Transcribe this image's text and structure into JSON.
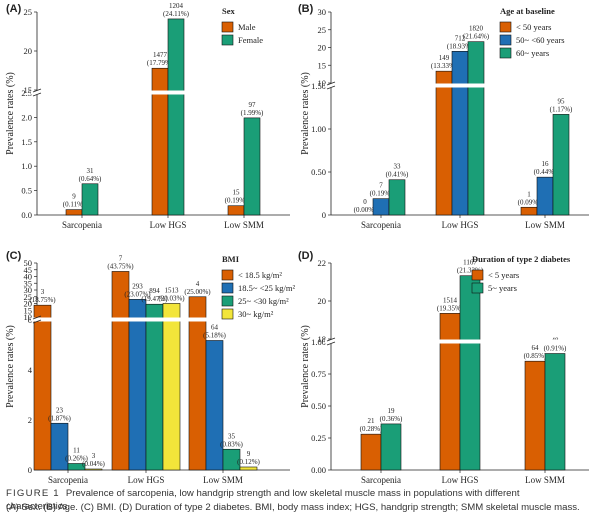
{
  "caption": {
    "label": "FIGURE 1",
    "line1": "Prevalence of sarcopenia, low handgrip strength and low skeletal muscle mass in populations with different characteristics.",
    "line2": "(A) Sex. (B) Age. (C) BMI. (D) Duration of type 2 diabetes. BMI, body mass index; HGS, handgrip strength; SMM skeletal muscle mass."
  },
  "colors": {
    "orange": "#d95f02",
    "blue": "#1f6fb4",
    "green": "#1a9e77",
    "yellow": "#f2e53a"
  },
  "chart_data": [
    {
      "panel": "(A)",
      "type": "bar",
      "ylabel": "Prevalence rates (%)",
      "legend_title": "Sex",
      "legend_position": "top-right",
      "categories": [
        "Sarcopenia",
        "Low HGS",
        "Low SMM"
      ],
      "axis_break": true,
      "y_segments": [
        {
          "range": [
            0,
            2.5
          ],
          "ticks": [
            "0.0",
            "0.5",
            "1.0",
            "1.5",
            "2.0",
            "2.5"
          ]
        },
        {
          "range": [
            15,
            25
          ],
          "ticks": [
            "15",
            "20",
            "25"
          ]
        }
      ],
      "series": [
        {
          "name": "Male",
          "color": "#d95f02",
          "values": [
            0.11,
            17.79,
            0.19
          ],
          "labels": [
            [
              "9",
              "(0.11%)"
            ],
            [
              "1477",
              "(17.79%)"
            ],
            [
              "15",
              "(0.19%)"
            ]
          ]
        },
        {
          "name": "Female",
          "color": "#1a9e77",
          "values": [
            0.64,
            24.11,
            1.99
          ],
          "labels": [
            [
              "31",
              "(0.64%)"
            ],
            [
              "1204",
              "(24.11%)"
            ],
            [
              "97",
              "(1.99%)"
            ]
          ]
        }
      ]
    },
    {
      "panel": "(B)",
      "type": "bar",
      "ylabel": "Prevalence rates (%)",
      "legend_title": "Age at baseline",
      "legend_position": "top-right",
      "categories": [
        "Sarcopenia",
        "Low HGS",
        "Low SMM"
      ],
      "axis_break": true,
      "y_segments": [
        {
          "range": [
            0,
            1.5
          ],
          "ticks": [
            "0",
            "0.50",
            "1.00",
            "1.50"
          ]
        },
        {
          "range": [
            10,
            30
          ],
          "ticks": [
            "10",
            "15",
            "20",
            "25",
            "30"
          ]
        }
      ],
      "series": [
        {
          "name": "< 50 years",
          "color": "#d95f02",
          "values": [
            0.0,
            13.33,
            0.09
          ],
          "labels": [
            [
              "0",
              "(0.00%)"
            ],
            [
              "149",
              "(13.33%)"
            ],
            [
              "1",
              "(0.09%)"
            ]
          ]
        },
        {
          "name": "50~ <60 years",
          "color": "#1f6fb4",
          "values": [
            0.19,
            18.93,
            0.44
          ],
          "labels": [
            [
              "7",
              "(0.19%)"
            ],
            [
              "712",
              "(18.93%)"
            ],
            [
              "16",
              "(0.44%)"
            ]
          ]
        },
        {
          "name": "60~ years",
          "color": "#1a9e77",
          "values": [
            0.41,
            21.64,
            1.17
          ],
          "labels": [
            [
              "33",
              "(0.41%)"
            ],
            [
              "1820",
              "(21.64%)"
            ],
            [
              "95",
              "(1.17%)"
            ]
          ]
        }
      ]
    },
    {
      "panel": "(C)",
      "type": "bar",
      "ylabel": "Prevalence rates (%)",
      "legend_title": "BMI",
      "legend_position": "top-right",
      "categories": [
        "Sarcopenia",
        "Low HGS",
        "Low SMM"
      ],
      "axis_break": true,
      "y_segments": [
        {
          "range": [
            0,
            6
          ],
          "ticks": [
            "0",
            "2",
            "4",
            "6"
          ]
        },
        {
          "range": [
            10,
            50
          ],
          "ticks": [
            "10",
            "15",
            "20",
            "25",
            "30",
            "35",
            "40",
            "45",
            "50"
          ]
        }
      ],
      "series": [
        {
          "name": "< 18.5 kg/m²",
          "color": "#d95f02",
          "values": [
            18.75,
            43.75,
            25.0
          ],
          "labels": [
            [
              "3",
              "(18.75%)"
            ],
            [
              "7",
              "(43.75%)"
            ],
            [
              "4",
              "(25.00%)"
            ]
          ]
        },
        {
          "name": "18.5~ <25 kg/m²",
          "color": "#1f6fb4",
          "values": [
            1.87,
            23.07,
            5.18
          ],
          "labels": [
            [
              "23",
              "(1.87%)"
            ],
            [
              "293",
              "(23.07%)"
            ],
            [
              "64",
              "(5.18%)"
            ]
          ]
        },
        {
          "name": "25~ <30 kg/m²",
          "color": "#1a9e77",
          "values": [
            0.26,
            19.47,
            0.83
          ],
          "labels": [
            [
              "11",
              "(0.26%)"
            ],
            [
              "894",
              "(19.47%)"
            ],
            [
              "35",
              "(0.83%)"
            ]
          ]
        },
        {
          "name": "30~ kg/m²",
          "color": "#f2e53a",
          "values": [
            0.04,
            20.03,
            0.12
          ],
          "labels": [
            [
              "3",
              "(0.04%)"
            ],
            [
              "1513",
              "(20.03%)"
            ],
            [
              "9",
              "(0.12%)"
            ]
          ]
        }
      ]
    },
    {
      "panel": "(D)",
      "type": "bar",
      "ylabel": "Prevalence rates (%)",
      "legend_title": "Duration of type 2 diabetes",
      "legend_position": "top-right",
      "categories": [
        "Sarcopenia",
        "Low HGS",
        "Low SMM"
      ],
      "axis_break": true,
      "y_segments": [
        {
          "range": [
            0,
            1
          ],
          "ticks": [
            "0.00",
            "0.25",
            "0.50",
            "0.75",
            "1.00"
          ]
        },
        {
          "range": [
            18,
            22
          ],
          "ticks": [
            "18",
            "20",
            "22"
          ]
        }
      ],
      "series": [
        {
          "name": "< 5 years",
          "color": "#d95f02",
          "values": [
            0.28,
            19.35,
            0.85
          ],
          "labels": [
            [
              "21",
              "(0.28%)"
            ],
            [
              "1514",
              "(19.35%)"
            ],
            [
              "64",
              "(0.85%)"
            ]
          ]
        },
        {
          "name": "5~ years",
          "color": "#1a9e77",
          "values": [
            0.36,
            21.33,
            0.91
          ],
          "labels": [
            [
              "19",
              "(0.36%)"
            ],
            [
              "1167",
              "(21.33%)"
            ],
            [
              "48",
              "(0.91%)"
            ]
          ]
        }
      ]
    }
  ]
}
